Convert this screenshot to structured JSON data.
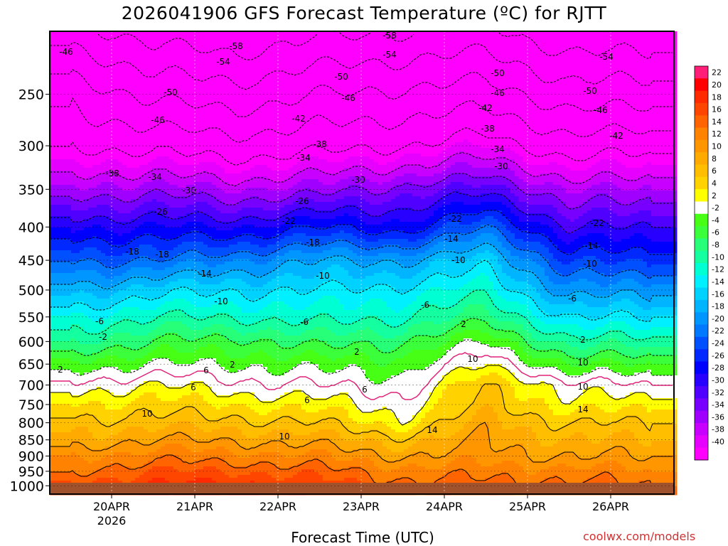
{
  "page": {
    "title": "2026041906 GFS Forecast Temperature (ºC) for RJTT",
    "xlabel": "Forecast Time (UTC)",
    "credit": "coolwx.com/models"
  },
  "chart_data": {
    "type": "heatmap",
    "title": "2026041906 GFS Forecast Temperature (ºC) for RJTT",
    "xlabel": "Forecast Time (UTC)",
    "ylabel": "",
    "x_ticks": [
      "20APR",
      "21APR",
      "22APR",
      "23APR",
      "24APR",
      "25APR",
      "26APR"
    ],
    "x_tick_sub": "2026",
    "y_ticks": [
      250,
      300,
      350,
      400,
      450,
      500,
      550,
      600,
      650,
      700,
      750,
      800,
      850,
      900,
      950,
      1000
    ],
    "ylim": [
      200,
      1030
    ],
    "y_scale": "log-pressure (inverted)",
    "colorbar": {
      "ticks": [
        22,
        20,
        18,
        16,
        14,
        12,
        10,
        8,
        6,
        4,
        2,
        -2,
        -4,
        -6,
        -8,
        -10,
        -12,
        -14,
        -16,
        -18,
        -20,
        -22,
        -24,
        -26,
        -28,
        -30,
        -32,
        -34,
        -36,
        -38,
        -40
      ],
      "bins": [
        {
          "min": 22,
          "max": 24,
          "color": "#ff1e78"
        },
        {
          "min": 20,
          "max": 22,
          "color": "#ff0000"
        },
        {
          "min": 18,
          "max": 20,
          "color": "#ff2a00"
        },
        {
          "min": 16,
          "max": 18,
          "color": "#ff4600"
        },
        {
          "min": 14,
          "max": 16,
          "color": "#ff6400"
        },
        {
          "min": 12,
          "max": 14,
          "color": "#ff8200"
        },
        {
          "min": 10,
          "max": 12,
          "color": "#ff9600"
        },
        {
          "min": 8,
          "max": 10,
          "color": "#ffaa00"
        },
        {
          "min": 6,
          "max": 8,
          "color": "#ffbe00"
        },
        {
          "min": 4,
          "max": 6,
          "color": "#ffd200"
        },
        {
          "min": 2,
          "max": 4,
          "color": "#ffff00"
        },
        {
          "min": -2,
          "max": 2,
          "color": "#ffffff"
        },
        {
          "min": -4,
          "max": -2,
          "color": "#46ff14"
        },
        {
          "min": -6,
          "max": -4,
          "color": "#3cff3c"
        },
        {
          "min": -8,
          "max": -6,
          "color": "#28ff78"
        },
        {
          "min": -10,
          "max": -8,
          "color": "#14ffa0"
        },
        {
          "min": -12,
          "max": -10,
          "color": "#00ffd2"
        },
        {
          "min": -14,
          "max": -12,
          "color": "#00f0ff"
        },
        {
          "min": -16,
          "max": -14,
          "color": "#00d2ff"
        },
        {
          "min": -18,
          "max": -16,
          "color": "#00b4ff"
        },
        {
          "min": -20,
          "max": -18,
          "color": "#0096ff"
        },
        {
          "min": -22,
          "max": -20,
          "color": "#0078ff"
        },
        {
          "min": -24,
          "max": -22,
          "color": "#0050ff"
        },
        {
          "min": -26,
          "max": -24,
          "color": "#0028ff"
        },
        {
          "min": -28,
          "max": -26,
          "color": "#0000ff"
        },
        {
          "min": -30,
          "max": -28,
          "color": "#2800ff"
        },
        {
          "min": -32,
          "max": -30,
          "color": "#5000ff"
        },
        {
          "min": -34,
          "max": -32,
          "color": "#7800ff"
        },
        {
          "min": -36,
          "max": -34,
          "color": "#a000ff"
        },
        {
          "min": -38,
          "max": -36,
          "color": "#c800ff"
        },
        {
          "min": -40,
          "max": -38,
          "color": "#e600ff"
        },
        {
          "min": -44,
          "max": -40,
          "color": "#ff00ff"
        }
      ]
    },
    "ground_color": "#a0522d",
    "freezing_line_color": "#e0207a",
    "contour_values": [
      -58,
      -54,
      -50,
      -46,
      -42,
      -38,
      -34,
      -30,
      -26,
      -22,
      -18,
      -14,
      -10,
      -6,
      -2,
      2,
      6,
      10,
      14
    ],
    "contour_labels": [
      "-46",
      "-58",
      "-58",
      "-54",
      "-54",
      "-54",
      "-50",
      "-50",
      "-50",
      "-50",
      "-46",
      "-46",
      "-46",
      "-46",
      "-42",
      "-42",
      "-42",
      "-38",
      "-38",
      "-38",
      "-34",
      "-34",
      "-34",
      "-30",
      "-30",
      "-30",
      "-26",
      "-26",
      "-22",
      "-22",
      "-22",
      "-18",
      "-18",
      "-18",
      "-14",
      "-14",
      "-14",
      "-10",
      "-10",
      "-10",
      "-10",
      "-6",
      "-6",
      "-6",
      "-6",
      "-2",
      "2",
      "2",
      "2",
      "2",
      "2",
      "6",
      "6",
      "6",
      "6",
      "10",
      "10",
      "10",
      "10",
      "10",
      "14",
      "14"
    ],
    "profiles": [
      {
        "time": "19APR12",
        "levels": [
          [
            250,
            -47
          ],
          [
            300,
            -42
          ],
          [
            350,
            -35
          ],
          [
            400,
            -28
          ],
          [
            450,
            -22
          ],
          [
            500,
            -17
          ],
          [
            550,
            -12
          ],
          [
            600,
            -8
          ],
          [
            650,
            -3
          ],
          [
            700,
            1
          ],
          [
            750,
            4
          ],
          [
            800,
            7
          ],
          [
            850,
            9
          ],
          [
            900,
            12
          ],
          [
            950,
            14
          ],
          [
            1000,
            17
          ]
        ]
      },
      {
        "time": "20APR12",
        "levels": [
          [
            250,
            -51
          ],
          [
            300,
            -43
          ],
          [
            350,
            -35
          ],
          [
            400,
            -28
          ],
          [
            450,
            -22
          ],
          [
            500,
            -15
          ],
          [
            550,
            -10
          ],
          [
            600,
            -6
          ],
          [
            650,
            -2
          ],
          [
            700,
            2
          ],
          [
            750,
            5
          ],
          [
            800,
            7
          ],
          [
            850,
            10
          ],
          [
            900,
            13
          ],
          [
            950,
            16
          ],
          [
            1000,
            18
          ]
        ]
      },
      {
        "time": "21APR12",
        "levels": [
          [
            250,
            -52
          ],
          [
            300,
            -44
          ],
          [
            350,
            -36
          ],
          [
            400,
            -28
          ],
          [
            450,
            -20
          ],
          [
            500,
            -14
          ],
          [
            550,
            -10
          ],
          [
            600,
            -5
          ],
          [
            650,
            -2
          ],
          [
            700,
            1
          ],
          [
            750,
            4
          ],
          [
            800,
            7
          ],
          [
            850,
            10
          ],
          [
            900,
            13
          ],
          [
            950,
            16
          ],
          [
            1000,
            19
          ]
        ]
      },
      {
        "time": "22APR12",
        "levels": [
          [
            250,
            -50
          ],
          [
            300,
            -43
          ],
          [
            350,
            -35
          ],
          [
            400,
            -26
          ],
          [
            450,
            -18
          ],
          [
            500,
            -14
          ],
          [
            550,
            -11
          ],
          [
            600,
            -7
          ],
          [
            650,
            -3
          ],
          [
            700,
            0
          ],
          [
            750,
            3
          ],
          [
            800,
            6
          ],
          [
            850,
            9
          ],
          [
            900,
            12
          ],
          [
            950,
            15
          ],
          [
            1000,
            17
          ]
        ]
      },
      {
        "time": "23APR12",
        "levels": [
          [
            250,
            -49
          ],
          [
            300,
            -42
          ],
          [
            350,
            -33
          ],
          [
            400,
            -27
          ],
          [
            450,
            -18
          ],
          [
            500,
            -13
          ],
          [
            550,
            -10
          ],
          [
            600,
            -6
          ],
          [
            650,
            -3
          ],
          [
            700,
            -1
          ],
          [
            750,
            1
          ],
          [
            800,
            3
          ],
          [
            850,
            7
          ],
          [
            900,
            10
          ],
          [
            950,
            13
          ],
          [
            1000,
            15
          ]
        ]
      },
      {
        "time": "24APR12",
        "levels": [
          [
            250,
            -48
          ],
          [
            300,
            -40
          ],
          [
            350,
            -31
          ],
          [
            400,
            -22
          ],
          [
            450,
            -15
          ],
          [
            500,
            -11
          ],
          [
            550,
            -7
          ],
          [
            600,
            -2
          ],
          [
            650,
            2
          ],
          [
            700,
            6
          ],
          [
            750,
            7
          ],
          [
            800,
            9
          ],
          [
            850,
            10
          ],
          [
            900,
            11
          ],
          [
            950,
            13
          ],
          [
            1000,
            15
          ]
        ]
      },
      {
        "time": "25APR12",
        "levels": [
          [
            250,
            -52
          ],
          [
            300,
            -44
          ],
          [
            350,
            -36
          ],
          [
            400,
            -30
          ],
          [
            450,
            -24
          ],
          [
            500,
            -19
          ],
          [
            550,
            -14
          ],
          [
            600,
            -9
          ],
          [
            650,
            -4
          ],
          [
            700,
            1
          ],
          [
            750,
            3
          ],
          [
            800,
            6
          ],
          [
            850,
            8
          ],
          [
            900,
            10
          ],
          [
            950,
            13
          ],
          [
            1000,
            15
          ]
        ]
      },
      {
        "time": "26APR12",
        "levels": [
          [
            250,
            -52
          ],
          [
            300,
            -43
          ],
          [
            350,
            -36
          ],
          [
            400,
            -30
          ],
          [
            450,
            -25
          ],
          [
            500,
            -19
          ],
          [
            550,
            -14
          ],
          [
            600,
            -9
          ],
          [
            650,
            -4
          ],
          [
            700,
            0
          ],
          [
            750,
            3
          ],
          [
            800,
            6
          ],
          [
            850,
            8
          ],
          [
            900,
            10
          ],
          [
            950,
            12
          ],
          [
            1000,
            14
          ]
        ]
      }
    ]
  }
}
